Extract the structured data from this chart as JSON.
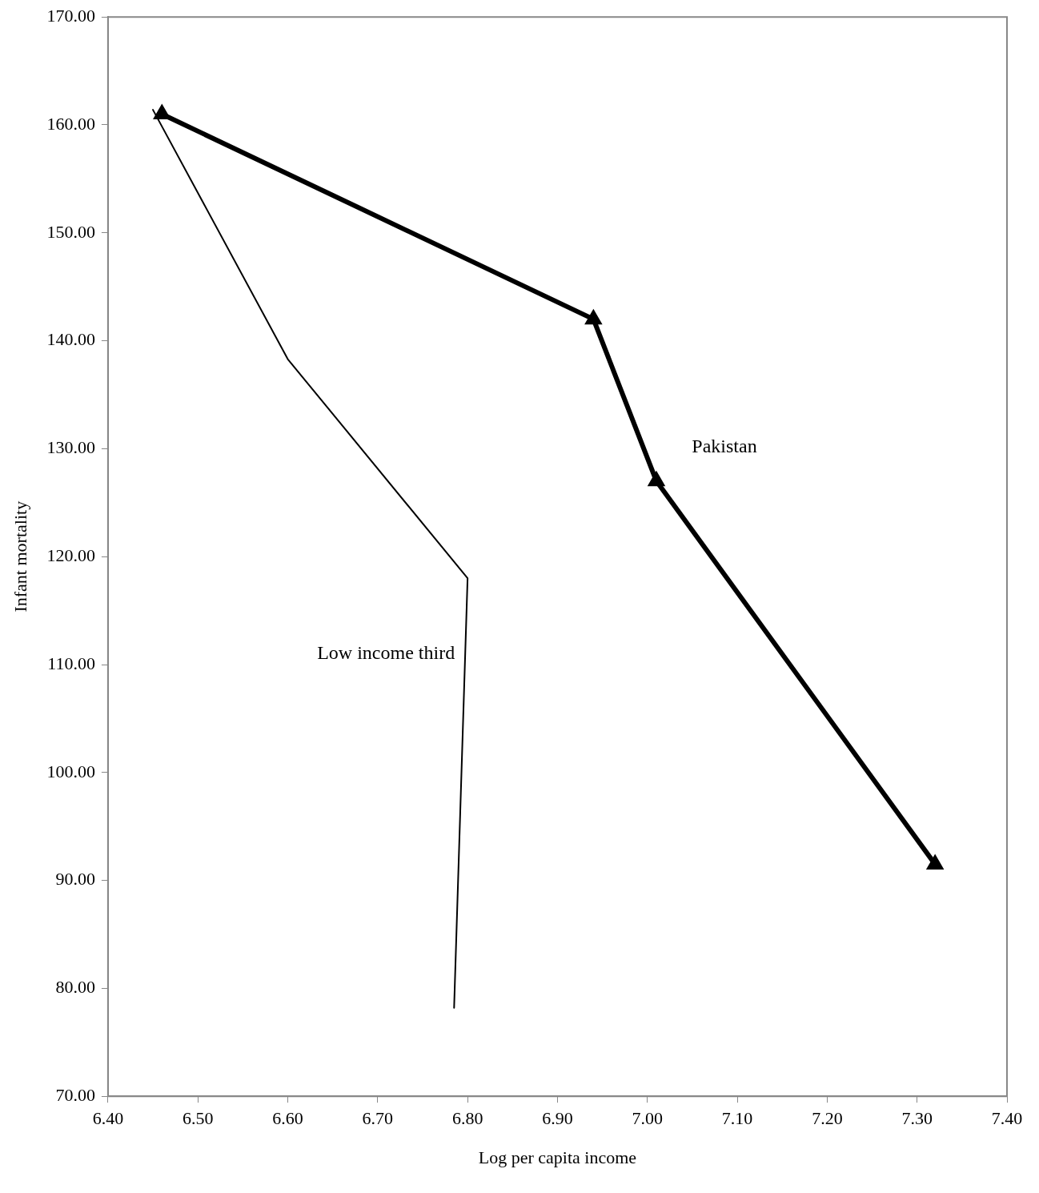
{
  "chart_data": {
    "type": "line",
    "xlabel": "Log per capita income",
    "ylabel": "Infant mortality",
    "xlim": [
      6.4,
      7.4
    ],
    "xticks": [
      {
        "value": 6.4,
        "label": "6.40"
      },
      {
        "value": 6.5,
        "label": "6.50"
      },
      {
        "value": 6.6,
        "label": "6.60"
      },
      {
        "value": 6.7,
        "label": "6.70"
      },
      {
        "value": 6.8,
        "label": "6.80"
      },
      {
        "value": 6.9,
        "label": "6.90"
      },
      {
        "value": 7.0,
        "label": "7.00"
      },
      {
        "value": 7.1,
        "label": "7.10"
      },
      {
        "value": 7.2,
        "label": "7.20"
      },
      {
        "value": 7.3,
        "label": "7.30"
      },
      {
        "value": 7.4,
        "label": "7.40"
      }
    ],
    "ylim": [
      70,
      170
    ],
    "yticks": [
      {
        "value": 70,
        "label": "70.00"
      },
      {
        "value": 80,
        "label": "80.00"
      },
      {
        "value": 90,
        "label": "90.00"
      },
      {
        "value": 100,
        "label": "100.00"
      },
      {
        "value": 110,
        "label": "110.00"
      },
      {
        "value": 120,
        "label": "120.00"
      },
      {
        "value": 130,
        "label": "130.00"
      },
      {
        "value": 140,
        "label": "140.00"
      },
      {
        "value": 150,
        "label": "150.00"
      },
      {
        "value": 160,
        "label": "160.00"
      },
      {
        "value": 170,
        "label": "170.00"
      }
    ],
    "grid": false,
    "legend": false,
    "series": [
      {
        "name": "Pakistan",
        "color": "#000000",
        "marker": "triangle",
        "x": [
          6.46,
          6.94,
          7.01,
          7.32
        ],
        "values": [
          161.0,
          142.0,
          127.0,
          91.5
        ]
      },
      {
        "name": "Low income third",
        "color": "#000000",
        "marker": "none",
        "x": [
          6.45,
          6.6,
          6.8,
          6.785
        ],
        "values": [
          161.4,
          138.3,
          118.0,
          78.2
        ]
      }
    ]
  }
}
